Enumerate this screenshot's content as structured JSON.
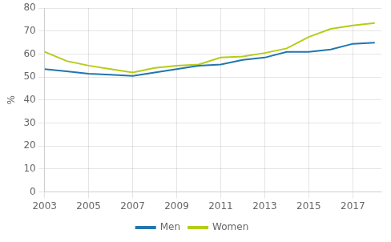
{
  "chart_data": {
    "type": "line",
    "x": [
      2003,
      2004,
      2005,
      2006,
      2007,
      2008,
      2009,
      2010,
      2011,
      2012,
      2013,
      2014,
      2015,
      2016,
      2017,
      2018
    ],
    "series": [
      {
        "name": "Men",
        "color": "#2176ae",
        "values": [
          53.5,
          52.5,
          51.5,
          51.0,
          50.5,
          52.0,
          53.5,
          55.0,
          55.5,
          57.5,
          58.5,
          61.0,
          61.0,
          62.0,
          64.5,
          65.0
        ]
      },
      {
        "name": "Women",
        "color": "#b5cc18",
        "values": [
          61.0,
          57.0,
          55.0,
          53.5,
          52.0,
          54.0,
          55.0,
          55.5,
          58.5,
          59.0,
          60.5,
          62.5,
          67.5,
          71.0,
          72.5,
          73.5
        ]
      }
    ],
    "ylabel": "%",
    "xlim": [
      2003,
      2018.3
    ],
    "xticks": [
      2003,
      2005,
      2007,
      2009,
      2011,
      2013,
      2015,
      2017
    ],
    "ylim": [
      0,
      80
    ],
    "yticks": [
      0,
      10,
      20,
      30,
      40,
      50,
      60,
      70,
      80
    ],
    "grid": true,
    "legend": "bottom"
  }
}
